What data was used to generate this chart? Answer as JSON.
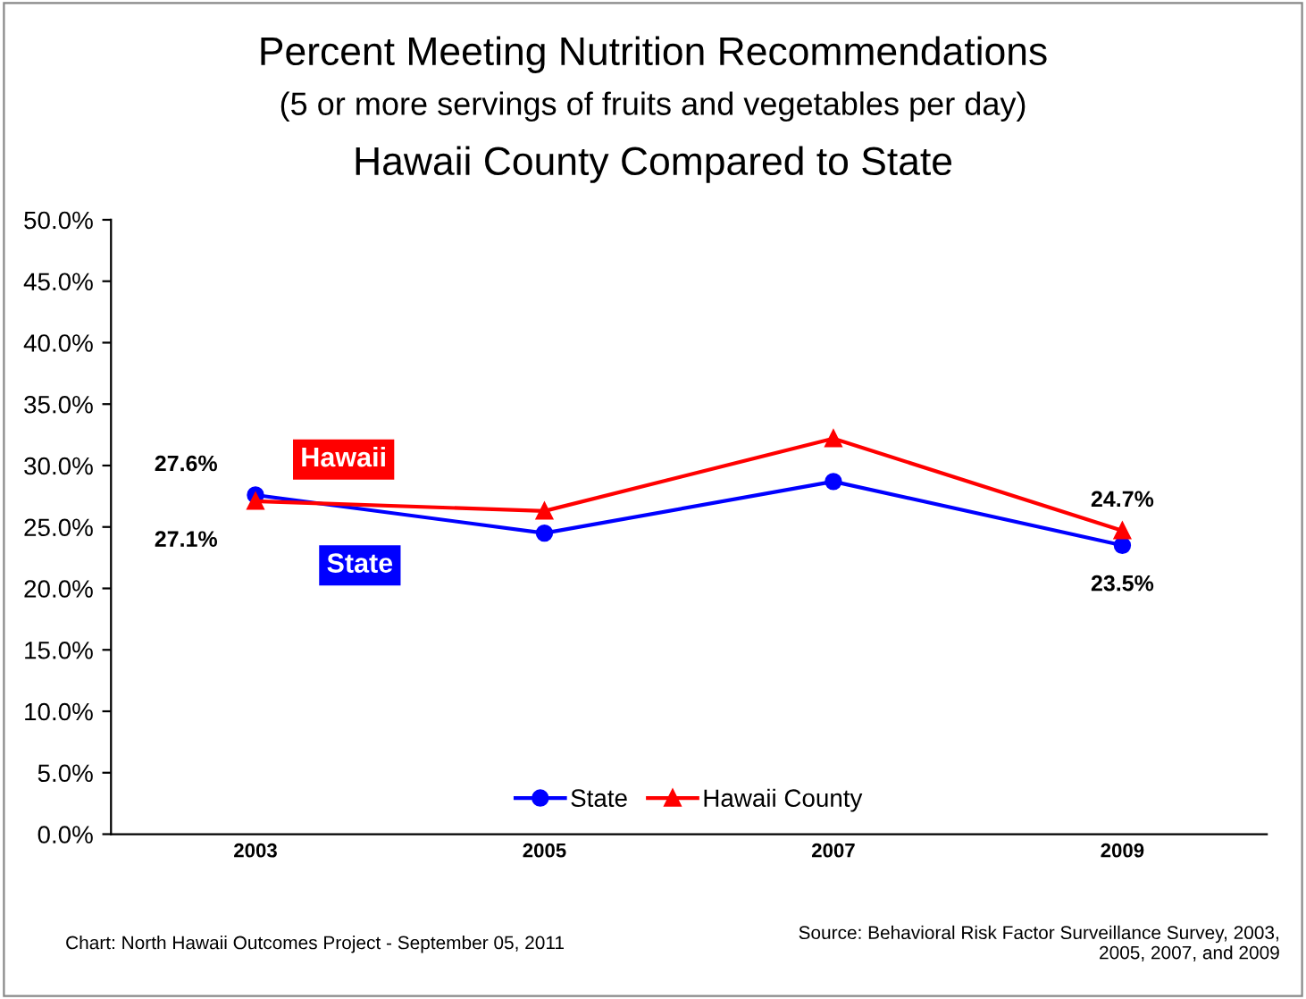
{
  "chart_data": {
    "type": "line",
    "title": "Percent Meeting Nutrition Recommendations",
    "subtitle": "(5 or more servings of fruits and vegetables per day)",
    "categories": [
      "2003",
      "2005",
      "2007",
      "2009"
    ],
    "series": [
      {
        "name": "State",
        "color": "#0000ff",
        "marker": "circle",
        "values": [
          27.6,
          24.5,
          28.7,
          23.5
        ],
        "value_labels": [
          "27.6%",
          null,
          null,
          "23.5%"
        ]
      },
      {
        "name": "Hawaii County",
        "color": "#ff0000",
        "marker": "triangle",
        "values": [
          27.1,
          26.3,
          32.2,
          24.7
        ],
        "value_labels": [
          "27.1%",
          null,
          null,
          "24.7%"
        ]
      }
    ],
    "ylim": [
      0,
      50
    ],
    "yticks": [
      {
        "value": 0,
        "label": "0.0%"
      },
      {
        "value": 5,
        "label": "5.0%"
      },
      {
        "value": 10,
        "label": "10.0%"
      },
      {
        "value": 15,
        "label": "15.0%"
      },
      {
        "value": 20,
        "label": "20.0%"
      },
      {
        "value": 25,
        "label": "25.0%"
      },
      {
        "value": 30,
        "label": "30.0%"
      },
      {
        "value": 35,
        "label": "35.0%"
      },
      {
        "value": 40,
        "label": "40.0%"
      },
      {
        "value": 45,
        "label": "45.0%"
      },
      {
        "value": 50,
        "label": "50.0%"
      }
    ],
    "legend": "bottom",
    "line_style": "solid",
    "annotations": [
      "Hawaii County Compared to State",
      "Hawaii",
      "State",
      "Chart: North Hawaii Outcomes Project - September 05, 2011",
      "Source: Behavioral Risk Factor Surveillance Survey, 2003,\n2005, 2007, and 2009"
    ]
  }
}
